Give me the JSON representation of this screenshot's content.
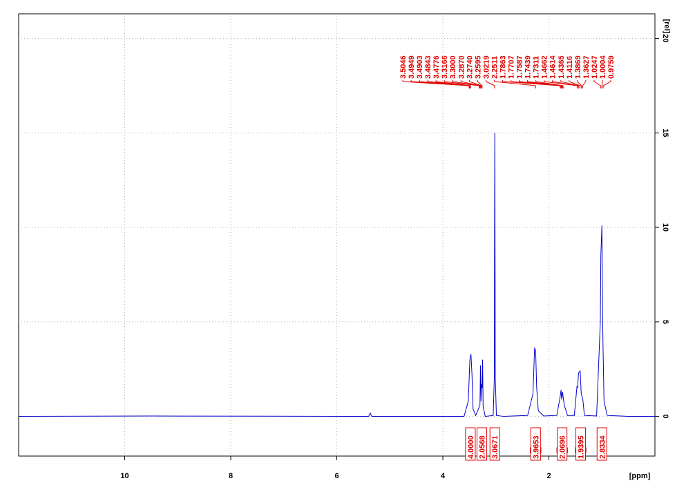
{
  "chart_data": {
    "type": "nmr",
    "xlabel": "[ppm]",
    "ylabel": "[rel]",
    "xlim": [
      12,
      0
    ],
    "ylim": [
      -2.1,
      21.3
    ],
    "xticks": [
      10,
      8,
      6,
      4,
      2
    ],
    "yticks": [
      0,
      5,
      10,
      15,
      20
    ],
    "grid": true,
    "series": [
      {
        "color": "#0000cc",
        "x": [
          12,
          9.5,
          5.4,
          5.37,
          5.34,
          3.6,
          3.52,
          3.49,
          3.47,
          3.45,
          3.43,
          3.38,
          3.3,
          3.29,
          3.28,
          3.27,
          3.26,
          3.25,
          3.24,
          3.2,
          3.05,
          3.03,
          3.02,
          3.01,
          2.99,
          2.85,
          2.4,
          2.3,
          2.27,
          2.25,
          2.23,
          2.2,
          2.1,
          1.85,
          1.79,
          1.77,
          1.76,
          1.74,
          1.73,
          1.71,
          1.65,
          1.52,
          1.47,
          1.46,
          1.44,
          1.41,
          1.39,
          1.36,
          1.33,
          1.1,
          1.03,
          1.02,
          1.0,
          0.99,
          0.98,
          0.96,
          0.9,
          0.5,
          0
        ],
        "values": [
          0,
          0.02,
          0,
          0.18,
          0,
          0,
          0.8,
          3.0,
          3.3,
          2.2,
          0.4,
          0.05,
          0.6,
          2.7,
          0.8,
          1.7,
          1.5,
          3.0,
          0.5,
          0,
          0.05,
          2,
          15,
          2,
          0.05,
          0,
          0.05,
          1.2,
          3.6,
          3.5,
          1.5,
          0.3,
          0.02,
          0.05,
          1.0,
          1.4,
          0.9,
          1.3,
          1.0,
          0.6,
          0.05,
          0.05,
          1.6,
          1.5,
          2.3,
          2.4,
          1.2,
          0.9,
          0.05,
          0.02,
          5.0,
          8.5,
          10.1,
          6.0,
          3.9,
          0.8,
          0.05,
          0,
          0
        ]
      }
    ],
    "peaks": [
      3.5046,
      3.4949,
      3.4903,
      3.4843,
      3.4776,
      3.3166,
      {
        "value": 3.3,
        "label": "3.3000"
      },
      {
        "value": 3.287,
        "label": "3.2870"
      },
      {
        "value": 3.274,
        "label": "3.2740"
      },
      3.2595,
      3.0219,
      2.2511,
      1.7863,
      1.7707,
      1.7587,
      1.7439,
      1.7311,
      1.4662,
      1.4614,
      1.4365,
      1.4116,
      1.3869,
      1.3627,
      1.0247,
      1.0004,
      0.9759
    ],
    "integrals": [
      {
        "value": 4,
        "label": "4.0000",
        "range": [
          3.56,
          3.4
        ]
      },
      {
        "value": 2.0568,
        "label": "2.0568",
        "range": [
          3.33,
          3.2
        ]
      },
      {
        "value": 3.0671,
        "label": "3.0671",
        "range": [
          3.07,
          2.97
        ]
      },
      {
        "value": 3.9653,
        "label": "3.9653",
        "range": [
          2.35,
          2.15
        ]
      },
      {
        "value": 2.0696,
        "label": "2.0696",
        "range": [
          1.85,
          1.65
        ]
      },
      {
        "value": 1.9395,
        "label": "1.9395",
        "range": [
          1.5,
          1.3
        ]
      },
      {
        "value": 2.8334,
        "label": "2.8334",
        "range": [
          1.08,
          0.92
        ]
      }
    ]
  }
}
